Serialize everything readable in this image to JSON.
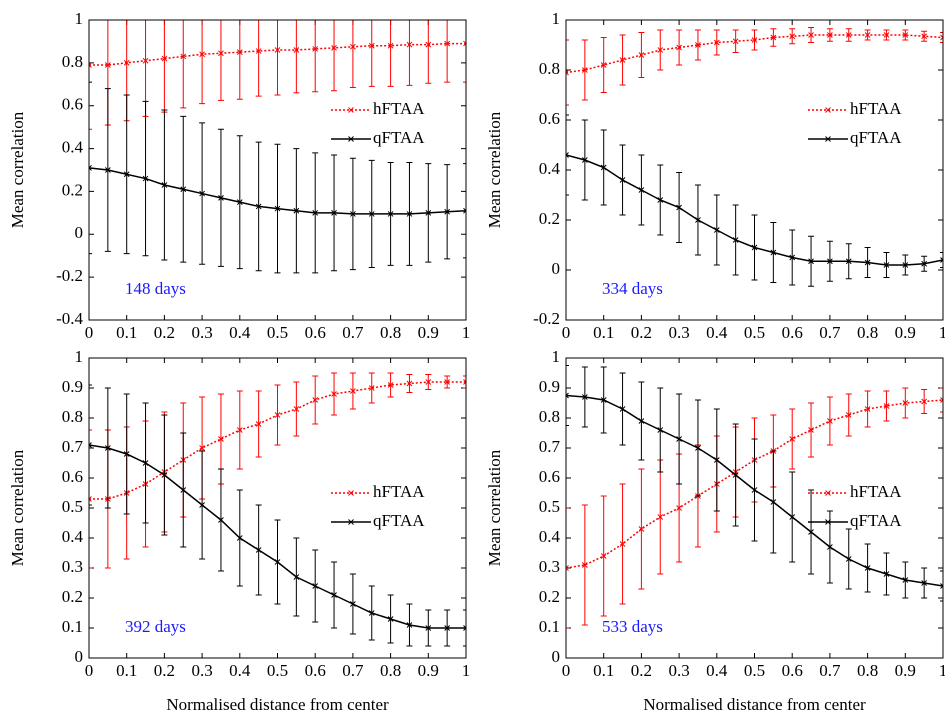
{
  "chart_data": [
    {
      "type": "line",
      "ylabel": "Mean correlation",
      "annotation": "148 days",
      "legend": "upper right",
      "x": [
        0,
        0.05,
        0.1,
        0.15,
        0.2,
        0.25,
        0.3,
        0.35,
        0.4,
        0.45,
        0.5,
        0.55,
        0.6,
        0.65,
        0.7,
        0.75,
        0.8,
        0.85,
        0.9,
        0.95,
        1
      ],
      "xlim": [
        0,
        1
      ],
      "xticks": [
        0,
        0.1,
        0.2,
        0.3,
        0.4,
        0.5,
        0.6,
        0.7,
        0.8,
        0.9,
        1
      ],
      "ylim": [
        -0.4,
        1
      ],
      "yticks": [
        -0.4,
        -0.2,
        0,
        0.2,
        0.4,
        0.6,
        0.8,
        1
      ],
      "series": [
        {
          "name": "hFTAA",
          "color": "#ff0000",
          "linestyle": "dotted",
          "values": [
            0.79,
            0.79,
            0.8,
            0.81,
            0.82,
            0.83,
            0.84,
            0.845,
            0.85,
            0.855,
            0.86,
            0.86,
            0.865,
            0.87,
            0.875,
            0.88,
            0.88,
            0.885,
            0.885,
            0.89,
            0.89
          ],
          "errors": [
            0.3,
            0.28,
            0.27,
            0.26,
            0.25,
            0.24,
            0.23,
            0.22,
            0.22,
            0.21,
            0.21,
            0.2,
            0.2,
            0.2,
            0.19,
            0.19,
            0.19,
            0.19,
            0.18,
            0.18,
            0.18
          ]
        },
        {
          "name": "qFTAA",
          "color": "#000000",
          "linestyle": "solid",
          "values": [
            0.31,
            0.3,
            0.28,
            0.26,
            0.23,
            0.21,
            0.19,
            0.17,
            0.15,
            0.13,
            0.12,
            0.11,
            0.1,
            0.1,
            0.095,
            0.095,
            0.095,
            0.095,
            0.1,
            0.105,
            0.11
          ],
          "errors": [
            0.4,
            0.38,
            0.37,
            0.36,
            0.35,
            0.34,
            0.33,
            0.32,
            0.31,
            0.3,
            0.3,
            0.29,
            0.28,
            0.27,
            0.26,
            0.25,
            0.24,
            0.24,
            0.23,
            0.22,
            0.22
          ]
        }
      ]
    },
    {
      "type": "line",
      "ylabel": "Mean correlation",
      "annotation": "334 days",
      "legend": "upper right",
      "x": [
        0,
        0.05,
        0.1,
        0.15,
        0.2,
        0.25,
        0.3,
        0.35,
        0.4,
        0.45,
        0.5,
        0.55,
        0.6,
        0.65,
        0.7,
        0.75,
        0.8,
        0.85,
        0.9,
        0.95,
        1
      ],
      "xlim": [
        0,
        1
      ],
      "xticks": [
        0,
        0.1,
        0.2,
        0.3,
        0.4,
        0.5,
        0.6,
        0.7,
        0.8,
        0.9,
        1
      ],
      "ylim": [
        -0.2,
        1
      ],
      "yticks": [
        -0.2,
        0,
        0.2,
        0.4,
        0.6,
        0.8,
        1
      ],
      "series": [
        {
          "name": "hFTAA",
          "color": "#ff0000",
          "linestyle": "dotted",
          "values": [
            0.79,
            0.8,
            0.82,
            0.84,
            0.86,
            0.88,
            0.89,
            0.9,
            0.91,
            0.915,
            0.92,
            0.93,
            0.935,
            0.94,
            0.94,
            0.94,
            0.94,
            0.94,
            0.94,
            0.935,
            0.93
          ],
          "errors": [
            0.13,
            0.12,
            0.11,
            0.1,
            0.09,
            0.08,
            0.07,
            0.06,
            0.05,
            0.045,
            0.04,
            0.035,
            0.03,
            0.03,
            0.025,
            0.025,
            0.02,
            0.02,
            0.02,
            0.02,
            0.02
          ]
        },
        {
          "name": "qFTAA",
          "color": "#000000",
          "linestyle": "solid",
          "values": [
            0.46,
            0.44,
            0.41,
            0.36,
            0.32,
            0.28,
            0.25,
            0.2,
            0.16,
            0.12,
            0.09,
            0.07,
            0.05,
            0.035,
            0.035,
            0.035,
            0.03,
            0.02,
            0.02,
            0.025,
            0.04
          ],
          "errors": [
            0.16,
            0.16,
            0.15,
            0.14,
            0.14,
            0.14,
            0.14,
            0.14,
            0.14,
            0.14,
            0.13,
            0.12,
            0.11,
            0.1,
            0.08,
            0.07,
            0.06,
            0.05,
            0.04,
            0.03,
            0.03
          ]
        }
      ]
    },
    {
      "type": "line",
      "ylabel": "Mean correlation",
      "xlabel": "Normalised distance from center",
      "annotation": "392 days",
      "legend": "center right",
      "x": [
        0,
        0.05,
        0.1,
        0.15,
        0.2,
        0.25,
        0.3,
        0.35,
        0.4,
        0.45,
        0.5,
        0.55,
        0.6,
        0.65,
        0.7,
        0.75,
        0.8,
        0.85,
        0.9,
        0.95,
        1
      ],
      "xlim": [
        0,
        1
      ],
      "xticks": [
        0,
        0.1,
        0.2,
        0.3,
        0.4,
        0.5,
        0.6,
        0.7,
        0.8,
        0.9,
        1
      ],
      "ylim": [
        0,
        1
      ],
      "yticks": [
        0,
        0.1,
        0.2,
        0.3,
        0.4,
        0.5,
        0.6,
        0.7,
        0.8,
        0.9,
        1
      ],
      "series": [
        {
          "name": "hFTAA",
          "color": "#ff0000",
          "linestyle": "dotted",
          "values": [
            0.53,
            0.53,
            0.55,
            0.58,
            0.62,
            0.66,
            0.7,
            0.73,
            0.76,
            0.78,
            0.81,
            0.83,
            0.86,
            0.88,
            0.89,
            0.9,
            0.91,
            0.915,
            0.92,
            0.92,
            0.92
          ],
          "errors": [
            0.23,
            0.23,
            0.22,
            0.21,
            0.2,
            0.19,
            0.17,
            0.15,
            0.13,
            0.11,
            0.1,
            0.09,
            0.08,
            0.07,
            0.06,
            0.05,
            0.04,
            0.03,
            0.025,
            0.02,
            0.02
          ]
        },
        {
          "name": "qFTAA",
          "color": "#000000",
          "linestyle": "solid",
          "values": [
            0.71,
            0.7,
            0.68,
            0.65,
            0.61,
            0.56,
            0.51,
            0.46,
            0.4,
            0.36,
            0.32,
            0.27,
            0.24,
            0.21,
            0.18,
            0.15,
            0.13,
            0.11,
            0.1,
            0.1,
            0.1
          ],
          "errors": [
            0.2,
            0.2,
            0.2,
            0.2,
            0.2,
            0.19,
            0.18,
            0.17,
            0.16,
            0.15,
            0.14,
            0.13,
            0.12,
            0.11,
            0.1,
            0.09,
            0.08,
            0.07,
            0.06,
            0.06,
            0.06
          ]
        }
      ]
    },
    {
      "type": "line",
      "ylabel": "Mean correlation",
      "xlabel": "Normalised distance from center",
      "annotation": "533 days",
      "legend": "center right",
      "x": [
        0,
        0.05,
        0.1,
        0.15,
        0.2,
        0.25,
        0.3,
        0.35,
        0.4,
        0.45,
        0.5,
        0.55,
        0.6,
        0.65,
        0.7,
        0.75,
        0.8,
        0.85,
        0.9,
        0.95,
        1
      ],
      "xlim": [
        0,
        1
      ],
      "xticks": [
        0,
        0.1,
        0.2,
        0.3,
        0.4,
        0.5,
        0.6,
        0.7,
        0.8,
        0.9,
        1
      ],
      "ylim": [
        0,
        1
      ],
      "yticks": [
        0,
        0.1,
        0.2,
        0.3,
        0.4,
        0.5,
        0.6,
        0.7,
        0.8,
        0.9,
        1
      ],
      "series": [
        {
          "name": "hFTAA",
          "color": "#ff0000",
          "linestyle": "dotted",
          "values": [
            0.3,
            0.31,
            0.34,
            0.38,
            0.43,
            0.47,
            0.5,
            0.54,
            0.58,
            0.62,
            0.66,
            0.69,
            0.73,
            0.76,
            0.79,
            0.81,
            0.83,
            0.84,
            0.85,
            0.855,
            0.86
          ],
          "errors": [
            0.2,
            0.2,
            0.2,
            0.2,
            0.2,
            0.19,
            0.18,
            0.17,
            0.16,
            0.15,
            0.14,
            0.12,
            0.1,
            0.09,
            0.08,
            0.07,
            0.06,
            0.05,
            0.05,
            0.04,
            0.04
          ]
        },
        {
          "name": "qFTAA",
          "color": "#000000",
          "linestyle": "solid",
          "values": [
            0.875,
            0.87,
            0.86,
            0.83,
            0.79,
            0.76,
            0.73,
            0.7,
            0.66,
            0.61,
            0.56,
            0.52,
            0.47,
            0.42,
            0.37,
            0.33,
            0.3,
            0.28,
            0.26,
            0.25,
            0.24
          ],
          "errors": [
            0.1,
            0.1,
            0.11,
            0.12,
            0.13,
            0.14,
            0.15,
            0.16,
            0.17,
            0.17,
            0.17,
            0.17,
            0.15,
            0.14,
            0.12,
            0.1,
            0.08,
            0.07,
            0.06,
            0.05,
            0.05
          ]
        }
      ]
    }
  ]
}
